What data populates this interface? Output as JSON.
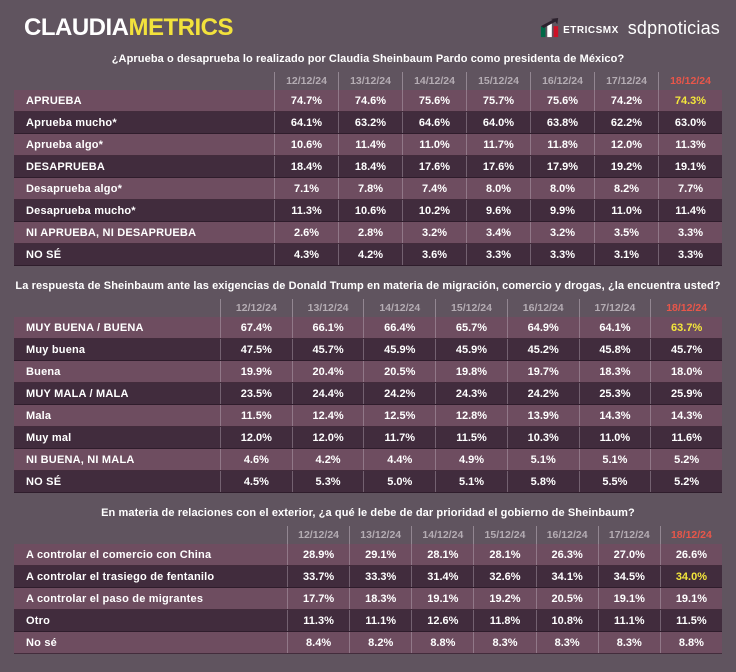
{
  "header": {
    "brand_claudia": "CLAUDIA",
    "brand_metrics": "METRICS",
    "metricsmx_label": "etricsmx",
    "sdpnoticias_label": "sdpnoticias"
  },
  "columns": [
    "12/12/24",
    "13/12/24",
    "14/12/24",
    "15/12/24",
    "16/12/24",
    "17/12/24",
    "18/12/24"
  ],
  "unit": "%",
  "colors": {
    "page-bg": "#60545f",
    "brand-yellow": "#f2e23c",
    "highlight-yellow": "#f3e63b",
    "latest-red": "#e8564a",
    "row-light": "#6e4d60",
    "row-dark": "#412c3d",
    "header-date": "#b4acb3",
    "flag-green": "#006847",
    "flag-red": "#ce1126"
  },
  "chart_data": [
    {
      "type": "table",
      "title": "¿Aprueba o desaprueba lo realizado por Claudia Sheinbaum Pardo como presidenta de México?",
      "columns": [
        "12/12/24",
        "13/12/24",
        "14/12/24",
        "15/12/24",
        "16/12/24",
        "17/12/24",
        "18/12/24"
      ],
      "rows": [
        {
          "label": "APRUEBA",
          "values": [
            74.7,
            74.6,
            75.6,
            75.7,
            75.6,
            74.2,
            74.3
          ],
          "highlight_last": true
        },
        {
          "label": "Aprueba mucho*",
          "values": [
            64.1,
            63.2,
            64.6,
            64.0,
            63.8,
            62.2,
            63.0
          ],
          "highlight_last": false
        },
        {
          "label": "Aprueba algo*",
          "values": [
            10.6,
            11.4,
            11.0,
            11.7,
            11.8,
            12.0,
            11.3
          ],
          "highlight_last": false
        },
        {
          "label": "DESAPRUEBA",
          "values": [
            18.4,
            18.4,
            17.6,
            17.6,
            17.9,
            19.2,
            19.1
          ],
          "highlight_last": false
        },
        {
          "label": "Desaprueba algo*",
          "values": [
            7.1,
            7.8,
            7.4,
            8.0,
            8.0,
            8.2,
            7.7
          ],
          "highlight_last": false
        },
        {
          "label": "Desaprueba mucho*",
          "values": [
            11.3,
            10.6,
            10.2,
            9.6,
            9.9,
            11.0,
            11.4
          ],
          "highlight_last": false
        },
        {
          "label": "NI APRUEBA, NI DESAPRUEBA",
          "values": [
            2.6,
            2.8,
            3.2,
            3.4,
            3.2,
            3.5,
            3.3
          ],
          "highlight_last": false
        },
        {
          "label": "NO SÉ",
          "values": [
            4.3,
            4.2,
            3.6,
            3.3,
            3.3,
            3.1,
            3.3
          ],
          "highlight_last": false
        }
      ]
    },
    {
      "type": "table",
      "title": "La respuesta de Sheinbaum ante las exigencias de Donald Trump en materia de migración, comercio y drogas, ¿la encuentra usted?",
      "columns": [
        "12/12/24",
        "13/12/24",
        "14/12/24",
        "15/12/24",
        "16/12/24",
        "17/12/24",
        "18/12/24"
      ],
      "rows": [
        {
          "label": "MUY BUENA / BUENA",
          "values": [
            67.4,
            66.1,
            66.4,
            65.7,
            64.9,
            64.1,
            63.7
          ],
          "highlight_last": true
        },
        {
          "label": "Muy buena",
          "values": [
            47.5,
            45.7,
            45.9,
            45.9,
            45.2,
            45.8,
            45.7
          ],
          "highlight_last": false
        },
        {
          "label": "Buena",
          "values": [
            19.9,
            20.4,
            20.5,
            19.8,
            19.7,
            18.3,
            18.0
          ],
          "highlight_last": false
        },
        {
          "label": "MUY MALA / MALA",
          "values": [
            23.5,
            24.4,
            24.2,
            24.3,
            24.2,
            25.3,
            25.9
          ],
          "highlight_last": false
        },
        {
          "label": "Mala",
          "values": [
            11.5,
            12.4,
            12.5,
            12.8,
            13.9,
            14.3,
            14.3
          ],
          "highlight_last": false
        },
        {
          "label": "Muy mal",
          "values": [
            12.0,
            12.0,
            11.7,
            11.5,
            10.3,
            11.0,
            11.6
          ],
          "highlight_last": false
        },
        {
          "label": "NI BUENA, NI MALA",
          "values": [
            4.6,
            4.2,
            4.4,
            4.9,
            5.1,
            5.1,
            5.2
          ],
          "highlight_last": false
        },
        {
          "label": "NO SÉ",
          "values": [
            4.5,
            5.3,
            5.0,
            5.1,
            5.8,
            5.5,
            5.2
          ],
          "highlight_last": false
        }
      ]
    },
    {
      "type": "table",
      "title": "En materia de relaciones con el exterior, ¿a qué le debe de dar prioridad el gobierno de Sheinbaum?",
      "columns": [
        "12/12/24",
        "13/12/24",
        "14/12/24",
        "15/12/24",
        "16/12/24",
        "17/12/24",
        "18/12/24"
      ],
      "rows": [
        {
          "label": "A controlar el comercio con China",
          "values": [
            28.9,
            29.1,
            28.1,
            28.1,
            26.3,
            27.0,
            26.6
          ],
          "highlight_last": false
        },
        {
          "label": "A controlar el trasiego de fentanilo",
          "values": [
            33.7,
            33.3,
            31.4,
            32.6,
            34.1,
            34.5,
            34.0
          ],
          "highlight_last": true
        },
        {
          "label": "A controlar el paso de migrantes",
          "values": [
            17.7,
            18.3,
            19.1,
            19.2,
            20.5,
            19.1,
            19.1
          ],
          "highlight_last": false
        },
        {
          "label": "Otro",
          "values": [
            11.3,
            11.1,
            12.6,
            11.8,
            10.8,
            11.1,
            11.5
          ],
          "highlight_last": false
        },
        {
          "label": "No sé",
          "values": [
            8.4,
            8.2,
            8.8,
            8.3,
            8.3,
            8.3,
            8.8
          ],
          "highlight_last": false
        }
      ]
    }
  ]
}
